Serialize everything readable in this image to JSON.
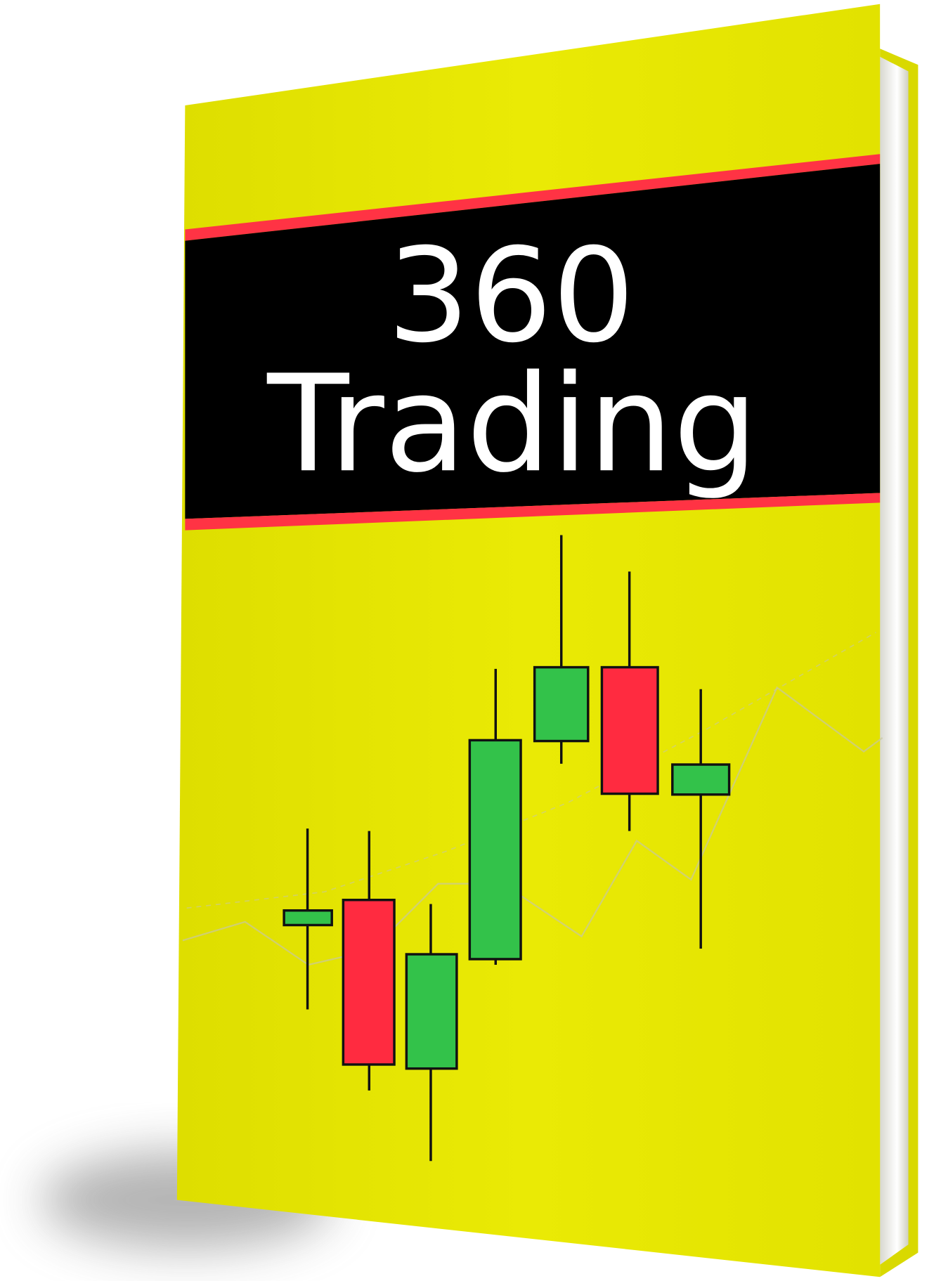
{
  "cover": {
    "title_line_1": "360",
    "title_line_2": "Trading"
  }
}
